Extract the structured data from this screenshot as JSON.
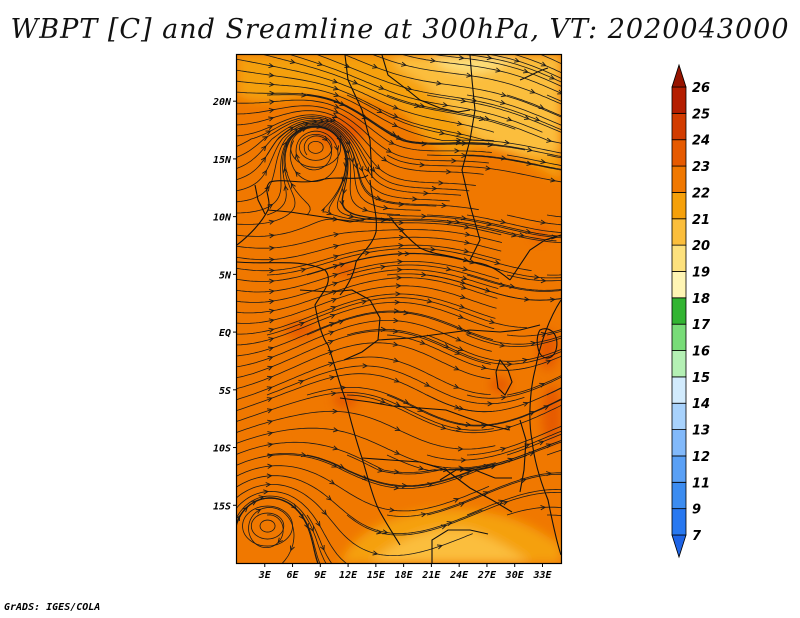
{
  "title": "WBPT [C] and Sreamline at 300hPa, VT: 2020043000",
  "credit": "GrADS: IGES/COLA",
  "chart_data": {
    "type": "heatmap",
    "variable": "WBPT [C]",
    "overlay": "streamlines",
    "level": "300hPa",
    "valid_time": "2020043000",
    "lon_range": [
      0,
      35
    ],
    "lat_range": [
      -20,
      24
    ],
    "x_ticks": [
      {
        "value": 3,
        "label": "3E"
      },
      {
        "value": 6,
        "label": "6E"
      },
      {
        "value": 9,
        "label": "9E"
      },
      {
        "value": 12,
        "label": "12E"
      },
      {
        "value": 15,
        "label": "15E"
      },
      {
        "value": 18,
        "label": "18E"
      },
      {
        "value": 21,
        "label": "21E"
      },
      {
        "value": 24,
        "label": "24E"
      },
      {
        "value": 27,
        "label": "27E"
      },
      {
        "value": 30,
        "label": "30E"
      },
      {
        "value": 33,
        "label": "33E"
      }
    ],
    "y_ticks": [
      {
        "value": 20,
        "label": "20N"
      },
      {
        "value": 15,
        "label": "15N"
      },
      {
        "value": 10,
        "label": "10N"
      },
      {
        "value": 5,
        "label": "5N"
      },
      {
        "value": 0,
        "label": "EQ"
      },
      {
        "value": -5,
        "label": "5S"
      },
      {
        "value": -10,
        "label": "10S"
      },
      {
        "value": -15,
        "label": "15S"
      }
    ],
    "colorbar": {
      "labels": [
        "7",
        "9",
        "11",
        "12",
        "13",
        "14",
        "15",
        "16",
        "17",
        "18",
        "19",
        "20",
        "21",
        "22",
        "23",
        "24",
        "25",
        "26"
      ],
      "colors": [
        "#1e64e6",
        "#2878f0",
        "#3c8cf0",
        "#5aa0f5",
        "#82b9fa",
        "#a8d2fc",
        "#d2ebfd",
        "#b4f0b4",
        "#78dc78",
        "#32b432",
        "#fff5b4",
        "#fde17d",
        "#fbbe3c",
        "#f5a00a",
        "#f07800",
        "#e65a00",
        "#d23c00",
        "#b41e00",
        "#961400"
      ]
    },
    "dominant_range": [
      22,
      23
    ],
    "features": [
      {
        "label": "cyclonic vortex",
        "lon": 8.5,
        "lat": 16
      },
      {
        "label": "cyclonic vortex",
        "lon": 3.3,
        "lat": -16.8
      }
    ]
  }
}
